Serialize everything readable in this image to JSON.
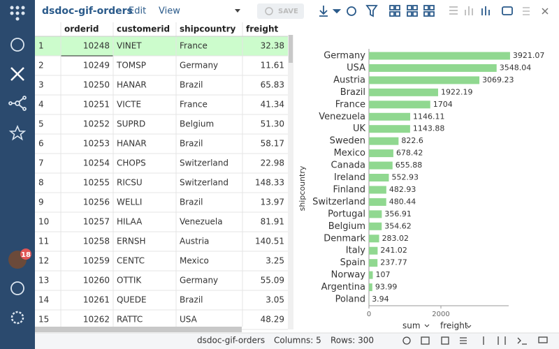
{
  "toolbar": {
    "title": "dsdoc-gif-orders",
    "menu": [
      "Edit",
      "View"
    ],
    "save": "SAVE"
  },
  "sidebar": {
    "badge": "18"
  },
  "table": {
    "columns": [
      "orderid",
      "customerid",
      "shipcountry",
      "freight"
    ],
    "rows": [
      [
        "1",
        "10248",
        "VINET",
        "France",
        "32.38"
      ],
      [
        "2",
        "10249",
        "TOMSP",
        "Germany",
        "11.61"
      ],
      [
        "3",
        "10250",
        "HANAR",
        "Brazil",
        "65.83"
      ],
      [
        "4",
        "10251",
        "VICTE",
        "France",
        "41.34"
      ],
      [
        "5",
        "10252",
        "SUPRD",
        "Belgium",
        "51.30"
      ],
      [
        "6",
        "10253",
        "HANAR",
        "Brazil",
        "58.17"
      ],
      [
        "7",
        "10254",
        "CHOPS",
        "Switzerland",
        "22.98"
      ],
      [
        "8",
        "10255",
        "RICSU",
        "Switzerland",
        "148.33"
      ],
      [
        "9",
        "10256",
        "WELLI",
        "Brazil",
        "13.97"
      ],
      [
        "10",
        "10257",
        "HILAA",
        "Venezuela",
        "81.91"
      ],
      [
        "11",
        "10258",
        "ERNSH",
        "Austria",
        "140.51"
      ],
      [
        "12",
        "10259",
        "CENTC",
        "Mexico",
        "3.25"
      ],
      [
        "13",
        "10260",
        "OTTIK",
        "Germany",
        "55.09"
      ],
      [
        "14",
        "10261",
        "QUEDE",
        "Brazil",
        "3.05"
      ],
      [
        "15",
        "10262",
        "RATTC",
        "USA",
        "48.29"
      ]
    ]
  },
  "chart_data": {
    "type": "hbar",
    "y_label": "shipcountry",
    "x_aggregate": "sum",
    "x_label": "freight",
    "categories": [
      "Germany",
      "USA",
      "Austria",
      "Brazil",
      "France",
      "Venezuela",
      "UK",
      "Sweden",
      "Mexico",
      "Canada",
      "Ireland",
      "Finland",
      "Switzerland",
      "Portugal",
      "Belgium",
      "Denmark",
      "Italy",
      "Spain",
      "Norway",
      "Argentina",
      "Poland"
    ],
    "values": [
      3921.07,
      3548.04,
      3069.23,
      1922.19,
      1704,
      1146.11,
      1143.88,
      822.6,
      678.42,
      655.88,
      552.93,
      482.93,
      480.44,
      356.91,
      354.62,
      283.02,
      241.02,
      237.77,
      107,
      93.99,
      3.94
    ],
    "color": "#90d890",
    "xlim": [
      0,
      4000
    ],
    "xticks": [
      0,
      2000
    ]
  },
  "status": {
    "name": "dsdoc-gif-orders",
    "columns": "Columns: 5",
    "rows": "Rows: 300"
  }
}
